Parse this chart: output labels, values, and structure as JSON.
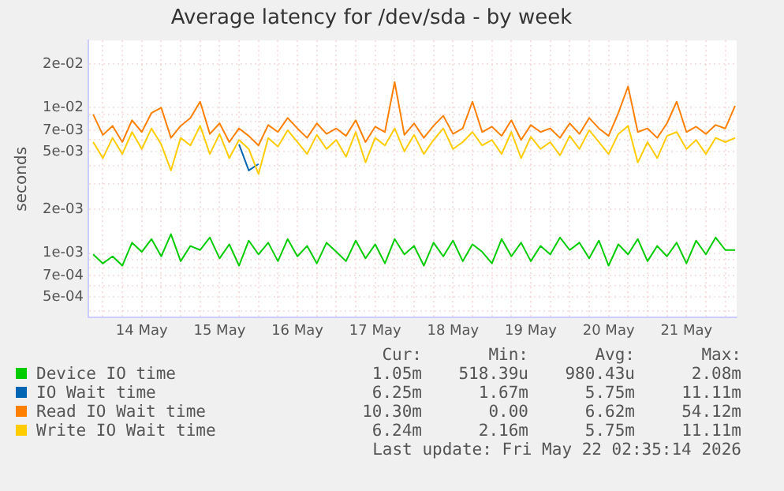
{
  "chart_data": {
    "type": "line",
    "title": "Average latency for /dev/sda - by week",
    "ylabel": "seconds",
    "log": true,
    "grid": true,
    "legend": "bottom",
    "marker": "none",
    "x": [
      "2026-05-13T21:00",
      "2026-05-14T00:00",
      "2026-05-14T03:00",
      "2026-05-14T06:00",
      "2026-05-14T09:00",
      "2026-05-14T12:00",
      "2026-05-14T15:00",
      "2026-05-14T18:00",
      "2026-05-14T21:00",
      "2026-05-15T00:00",
      "2026-05-15T03:00",
      "2026-05-15T06:00",
      "2026-05-15T09:00",
      "2026-05-15T12:00",
      "2026-05-15T15:00",
      "2026-05-15T18:00",
      "2026-05-15T21:00",
      "2026-05-16T00:00",
      "2026-05-16T03:00",
      "2026-05-16T06:00",
      "2026-05-16T09:00",
      "2026-05-16T12:00",
      "2026-05-16T15:00",
      "2026-05-16T18:00",
      "2026-05-16T21:00",
      "2026-05-17T00:00",
      "2026-05-17T03:00",
      "2026-05-17T06:00",
      "2026-05-17T09:00",
      "2026-05-17T12:00",
      "2026-05-17T15:00",
      "2026-05-17T18:00",
      "2026-05-17T21:00",
      "2026-05-18T00:00",
      "2026-05-18T03:00",
      "2026-05-18T06:00",
      "2026-05-18T09:00",
      "2026-05-18T12:00",
      "2026-05-18T15:00",
      "2026-05-18T18:00",
      "2026-05-18T21:00",
      "2026-05-19T00:00",
      "2026-05-19T03:00",
      "2026-05-19T06:00",
      "2026-05-19T09:00",
      "2026-05-19T12:00",
      "2026-05-19T15:00",
      "2026-05-19T18:00",
      "2026-05-19T21:00",
      "2026-05-20T00:00",
      "2026-05-20T03:00",
      "2026-05-20T06:00",
      "2026-05-20T09:00",
      "2026-05-20T12:00",
      "2026-05-20T15:00",
      "2026-05-20T18:00",
      "2026-05-20T21:00",
      "2026-05-21T00:00",
      "2026-05-21T03:00",
      "2026-05-21T06:00",
      "2026-05-21T09:00",
      "2026-05-21T12:00",
      "2026-05-21T15:00",
      "2026-05-21T18:00",
      "2026-05-21T21:00",
      "2026-05-22T00:00",
      "2026-05-22T03:00"
    ],
    "series": [
      {
        "name": "Device IO time",
        "color": "#00cc00",
        "values": [
          0.00098,
          0.00085,
          0.00095,
          0.00082,
          0.00118,
          0.00102,
          0.00125,
          0.00095,
          0.00135,
          0.00088,
          0.00112,
          0.00105,
          0.00128,
          0.00092,
          0.00115,
          0.00082,
          0.00122,
          0.00098,
          0.00118,
          0.00088,
          0.00125,
          0.00095,
          0.00112,
          0.00085,
          0.00118,
          0.00102,
          0.00088,
          0.00122,
          0.00092,
          0.00115,
          0.00085,
          0.00125,
          0.00098,
          0.00112,
          0.00082,
          0.00118,
          0.00095,
          0.00122,
          0.00088,
          0.00115,
          0.00102,
          0.00085,
          0.00125,
          0.00095,
          0.00118,
          0.00088,
          0.00112,
          0.00098,
          0.00128,
          0.00105,
          0.00118,
          0.00092,
          0.00122,
          0.00082,
          0.00115,
          0.00098,
          0.00125,
          0.00088,
          0.00112,
          0.00095,
          0.00118,
          0.00085,
          0.00122,
          0.00098,
          0.00128,
          0.00105,
          0.00105
        ]
      },
      {
        "name": "IO Wait time",
        "color": "#0066b3",
        "values": [
          null,
          null,
          null,
          null,
          null,
          null,
          null,
          null,
          null,
          null,
          null,
          null,
          null,
          null,
          null,
          0.0056,
          0.0037,
          0.0041,
          null,
          null,
          null,
          null,
          null,
          null,
          null,
          null,
          null,
          null,
          null,
          null,
          null,
          null,
          null,
          null,
          null,
          null,
          null,
          null,
          null,
          null,
          null,
          null,
          null,
          null,
          null,
          null,
          null,
          null,
          null,
          null,
          null,
          null,
          null,
          null,
          null,
          null,
          null,
          null,
          null,
          null,
          null,
          null,
          null,
          null,
          null,
          null,
          null
        ]
      },
      {
        "name": "Read IO Wait time",
        "color": "#ff8000",
        "values": [
          0.009,
          0.0065,
          0.0075,
          0.0058,
          0.0082,
          0.0068,
          0.0092,
          0.01,
          0.0062,
          0.0075,
          0.0085,
          0.011,
          0.0066,
          0.0078,
          0.0058,
          0.0072,
          0.0064,
          0.0055,
          0.0076,
          0.0068,
          0.0085,
          0.0072,
          0.0062,
          0.0078,
          0.0066,
          0.0072,
          0.0064,
          0.0082,
          0.0058,
          0.0074,
          0.0068,
          0.015,
          0.0065,
          0.0078,
          0.0062,
          0.0075,
          0.0088,
          0.0066,
          0.0072,
          0.011,
          0.0068,
          0.0074,
          0.0064,
          0.0082,
          0.006,
          0.0076,
          0.0068,
          0.0072,
          0.0062,
          0.0078,
          0.0066,
          0.0085,
          0.0072,
          0.0064,
          0.0092,
          0.014,
          0.0068,
          0.0072,
          0.0062,
          0.0078,
          0.011,
          0.0068,
          0.0074,
          0.0066,
          0.0076,
          0.0072,
          0.0103
        ]
      },
      {
        "name": "Write IO Wait time",
        "color": "#ffcc00",
        "values": [
          0.0058,
          0.0045,
          0.0062,
          0.0048,
          0.0068,
          0.0052,
          0.0072,
          0.0056,
          0.0037,
          0.0062,
          0.0055,
          0.0075,
          0.0048,
          0.0066,
          0.0045,
          0.006,
          0.0052,
          0.0035,
          0.0062,
          0.0054,
          0.007,
          0.0058,
          0.0048,
          0.0065,
          0.0052,
          0.006,
          0.0046,
          0.0068,
          0.0042,
          0.0062,
          0.0055,
          0.0072,
          0.005,
          0.0065,
          0.0048,
          0.006,
          0.0072,
          0.0052,
          0.0058,
          0.0068,
          0.0055,
          0.006,
          0.0048,
          0.0068,
          0.0045,
          0.0063,
          0.0052,
          0.0058,
          0.0047,
          0.0064,
          0.0052,
          0.007,
          0.0058,
          0.0048,
          0.0066,
          0.0075,
          0.0042,
          0.0058,
          0.0045,
          0.0064,
          0.0068,
          0.0052,
          0.006,
          0.0048,
          0.0062,
          0.0058,
          0.0062
        ]
      }
    ],
    "xlim": [
      "2026-05-13T19:30",
      "2026-05-22T03:30"
    ],
    "xticks": [
      {
        "value": "2026-05-14T00:00",
        "label": null
      },
      {
        "value": "2026-05-14T06:00",
        "label": null
      },
      {
        "value": "2026-05-14T12:00",
        "label": "14 May"
      },
      {
        "value": "2026-05-14T18:00",
        "label": null
      },
      {
        "value": "2026-05-15T00:00",
        "label": null
      },
      {
        "value": "2026-05-15T06:00",
        "label": null
      },
      {
        "value": "2026-05-15T12:00",
        "label": "15 May"
      },
      {
        "value": "2026-05-15T18:00",
        "label": null
      },
      {
        "value": "2026-05-16T00:00",
        "label": null
      },
      {
        "value": "2026-05-16T06:00",
        "label": null
      },
      {
        "value": "2026-05-16T12:00",
        "label": "16 May"
      },
      {
        "value": "2026-05-16T18:00",
        "label": null
      },
      {
        "value": "2026-05-17T00:00",
        "label": null
      },
      {
        "value": "2026-05-17T06:00",
        "label": null
      },
      {
        "value": "2026-05-17T12:00",
        "label": "17 May"
      },
      {
        "value": "2026-05-17T18:00",
        "label": null
      },
      {
        "value": "2026-05-18T00:00",
        "label": null
      },
      {
        "value": "2026-05-18T06:00",
        "label": null
      },
      {
        "value": "2026-05-18T12:00",
        "label": "18 May"
      },
      {
        "value": "2026-05-18T18:00",
        "label": null
      },
      {
        "value": "2026-05-19T00:00",
        "label": null
      },
      {
        "value": "2026-05-19T06:00",
        "label": null
      },
      {
        "value": "2026-05-19T12:00",
        "label": "19 May"
      },
      {
        "value": "2026-05-19T18:00",
        "label": null
      },
      {
        "value": "2026-05-20T00:00",
        "label": null
      },
      {
        "value": "2026-05-20T06:00",
        "label": null
      },
      {
        "value": "2026-05-20T12:00",
        "label": "20 May"
      },
      {
        "value": "2026-05-20T18:00",
        "label": null
      },
      {
        "value": "2026-05-21T00:00",
        "label": null
      },
      {
        "value": "2026-05-21T06:00",
        "label": null
      },
      {
        "value": "2026-05-21T12:00",
        "label": "21 May"
      },
      {
        "value": "2026-05-21T18:00",
        "label": null
      },
      {
        "value": "2026-05-22T00:00",
        "label": null
      }
    ],
    "ylim": [
      0.00036,
      0.029
    ],
    "yticks": [
      {
        "value": 0.0004,
        "label": null
      },
      {
        "value": 0.0005,
        "label": "5e-04"
      },
      {
        "value": 0.0006,
        "label": null
      },
      {
        "value": 0.0007,
        "label": "7e-04"
      },
      {
        "value": 0.0008,
        "label": null
      },
      {
        "value": 0.0009,
        "label": null
      },
      {
        "value": 0.001,
        "label": "1e-03"
      },
      {
        "value": 0.002,
        "label": "2e-03"
      },
      {
        "value": 0.003,
        "label": null
      },
      {
        "value": 0.004,
        "label": null
      },
      {
        "value": 0.005,
        "label": "5e-03"
      },
      {
        "value": 0.006,
        "label": null
      },
      {
        "value": 0.007,
        "label": "7e-03"
      },
      {
        "value": 0.008,
        "label": null
      },
      {
        "value": 0.009,
        "label": null
      },
      {
        "value": 0.01,
        "label": "1e-02"
      },
      {
        "value": 0.02,
        "label": "2e-02"
      }
    ],
    "annotations": [
      "Cur:",
      "Min:",
      "Avg:",
      "Max:",
      "1.05m",
      "518.39u",
      "980.43u",
      "2.08m",
      "6.25m",
      "1.67m",
      "5.75m",
      "11.11m",
      "10.30m",
      "0.00",
      "6.62m",
      "54.12m",
      "6.24m",
      "2.16m",
      "5.75m",
      "11.11m",
      "Last update: Fri May 22 02:35:14 2026"
    ]
  }
}
